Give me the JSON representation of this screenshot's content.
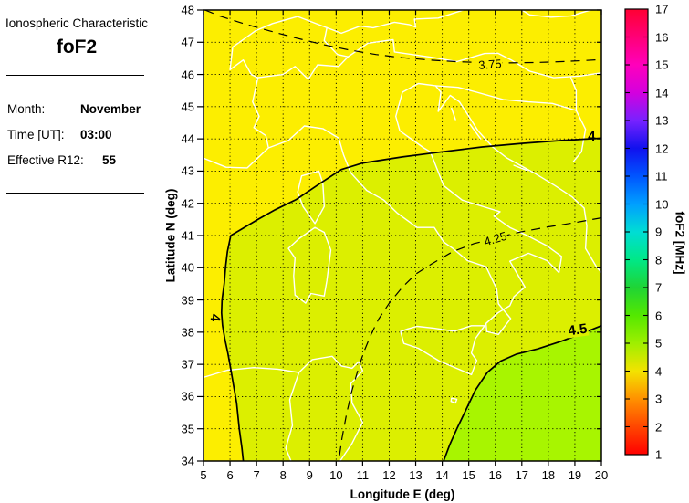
{
  "panel": {
    "title": "Ionospheric Characteristic",
    "characteristic": "foF2",
    "month_label": "Month:",
    "month_value": "November",
    "time_label": "Time [UT]:",
    "time_value": "03:00",
    "r12_label": "Effective R12:",
    "r12_value": "55"
  },
  "axes": {
    "xlabel": "Longitude E (deg)",
    "ylabel": "Latitude N (deg)"
  },
  "colorbar_title": "foF2 [MHz]",
  "chart_data": {
    "type": "heatmap",
    "subtype": "filled-contour-map",
    "title": "foF2 contour map over Europe",
    "xlabel": "Longitude E (deg)",
    "ylabel": "Latitude N (deg)",
    "xlim": [
      5,
      20
    ],
    "ylim": [
      34,
      48
    ],
    "xticks": [
      5,
      6,
      7,
      8,
      9,
      10,
      11,
      12,
      13,
      14,
      15,
      16,
      17,
      18,
      19,
      20
    ],
    "yticks": [
      34,
      35,
      36,
      37,
      38,
      39,
      40,
      41,
      42,
      43,
      44,
      45,
      46,
      47,
      48
    ],
    "grid": "dotted",
    "grid_color": "#000000",
    "coastline_color": "#ffffff",
    "contour_color": "#000000",
    "regions": {
      "below_4": "#FCEE00",
      "band_4_to_45": "#DCEF00",
      "above_45": "#A8F500"
    },
    "contours": [
      {
        "level": 3.75,
        "style": "dashed",
        "points": [
          [
            5.05,
            48
          ],
          [
            5.6,
            47.82
          ],
          [
            6.5,
            47.58
          ],
          [
            7.5,
            47.35
          ],
          [
            8.5,
            47.13
          ],
          [
            9.5,
            46.93
          ],
          [
            10.5,
            46.76
          ],
          [
            11.5,
            46.62
          ],
          [
            12.5,
            46.52
          ],
          [
            13.5,
            46.45
          ],
          [
            14.5,
            46.4
          ],
          [
            15.5,
            46.37
          ],
          [
            16.5,
            46.36
          ],
          [
            17.5,
            46.37
          ],
          [
            18.5,
            46.4
          ],
          [
            19.3,
            46.43
          ],
          [
            20,
            46.46
          ]
        ],
        "labels": [
          {
            "text": "3.75",
            "lon": 15.8,
            "lat": 46.3,
            "rot": -4,
            "bold": false,
            "bg": "#FCEE00"
          }
        ]
      },
      {
        "level": 4,
        "style": "solid",
        "points": [
          [
            20,
            44.02
          ],
          [
            18.5,
            43.95
          ],
          [
            17,
            43.86
          ],
          [
            15.5,
            43.75
          ],
          [
            14,
            43.6
          ],
          [
            12.5,
            43.44
          ],
          [
            11,
            43.25
          ],
          [
            10.2,
            43.05
          ],
          [
            9.4,
            42.62
          ],
          [
            8.5,
            42.12
          ],
          [
            7.7,
            41.8
          ],
          [
            7.05,
            41.5
          ],
          [
            6.4,
            41.18
          ],
          [
            6.03,
            41.0
          ],
          [
            5.9,
            40.5
          ],
          [
            5.83,
            40.0
          ],
          [
            5.78,
            39.5
          ],
          [
            5.7,
            39.0
          ],
          [
            5.68,
            38.6
          ],
          [
            5.72,
            38.2
          ],
          [
            5.8,
            37.8
          ],
          [
            5.92,
            37.35
          ],
          [
            6.02,
            36.9
          ],
          [
            6.12,
            36.4
          ],
          [
            6.25,
            35.8
          ],
          [
            6.35,
            35.0
          ],
          [
            6.45,
            34.4
          ],
          [
            6.5,
            34.0
          ]
        ],
        "labels": [
          {
            "text": "4",
            "lon": 19.63,
            "lat": 44.05,
            "rot": 0,
            "bold": true,
            "bg": ""
          },
          {
            "text": "4",
            "lon": 5.42,
            "lat": 38.45,
            "rot": 95,
            "bold": true,
            "bg": ""
          }
        ]
      },
      {
        "level": 4.25,
        "style": "dashed",
        "points": [
          [
            20,
            41.55
          ],
          [
            19,
            41.4
          ],
          [
            18,
            41.27
          ],
          [
            17,
            41.12
          ],
          [
            16.4,
            41.0
          ],
          [
            15.8,
            40.87
          ],
          [
            15.2,
            40.75
          ],
          [
            14.4,
            40.5
          ],
          [
            13.6,
            40.12
          ],
          [
            13.0,
            39.8
          ],
          [
            12.5,
            39.4
          ],
          [
            12.0,
            38.9
          ],
          [
            11.6,
            38.4
          ],
          [
            11.3,
            37.9
          ],
          [
            11.05,
            37.4
          ],
          [
            10.85,
            36.9
          ],
          [
            10.6,
            36.2
          ],
          [
            10.4,
            35.5
          ],
          [
            10.22,
            34.7
          ],
          [
            10.1,
            34.0
          ]
        ],
        "labels": [
          {
            "text": "4.25",
            "lon": 16.0,
            "lat": 40.88,
            "rot": -17,
            "bold": false,
            "bg": "#DCEF00"
          }
        ]
      },
      {
        "level": 4.5,
        "style": "solid",
        "points": [
          [
            20,
            38.2
          ],
          [
            19.3,
            37.97
          ],
          [
            18.5,
            37.72
          ],
          [
            17.6,
            37.48
          ],
          [
            16.8,
            37.32
          ],
          [
            16.2,
            37.1
          ],
          [
            15.7,
            36.75
          ],
          [
            15.25,
            36.2
          ],
          [
            14.9,
            35.6
          ],
          [
            14.55,
            35.0
          ],
          [
            14.28,
            34.5
          ],
          [
            14.05,
            34.0
          ]
        ],
        "labels": [
          {
            "text": "4.5",
            "lon": 19.1,
            "lat": 38.05,
            "rot": -8,
            "bold": true,
            "bg": "#DCEF00"
          }
        ]
      }
    ],
    "colorbar": {
      "label": "foF2 [MHz]",
      "min": 1,
      "max": 17,
      "ticks": [
        1,
        2,
        3,
        4,
        5,
        6,
        7,
        8,
        9,
        10,
        11,
        12,
        13,
        14,
        15,
        16,
        17
      ],
      "stops": [
        {
          "v": 1,
          "c": "#FF0000"
        },
        {
          "v": 2,
          "c": "#FF4600"
        },
        {
          "v": 3,
          "c": "#FF9100"
        },
        {
          "v": 4,
          "c": "#F3E300"
        },
        {
          "v": 5,
          "c": "#9FEF00"
        },
        {
          "v": 6,
          "c": "#54E800"
        },
        {
          "v": 7,
          "c": "#1FD435"
        },
        {
          "v": 8,
          "c": "#00E887"
        },
        {
          "v": 9,
          "c": "#00DDD4"
        },
        {
          "v": 10,
          "c": "#009FFF"
        },
        {
          "v": 11,
          "c": "#0055FF"
        },
        {
          "v": 12,
          "c": "#1111EE"
        },
        {
          "v": 13,
          "c": "#7722FF"
        },
        {
          "v": 14,
          "c": "#D400DE"
        },
        {
          "v": 15,
          "c": "#FF00BB"
        },
        {
          "v": 16,
          "c": "#FF0077"
        },
        {
          "v": 17,
          "c": "#FF0033"
        }
      ]
    },
    "coastlines": [
      [
        [
          5,
          43.4
        ],
        [
          5.85,
          43.12
        ],
        [
          6.65,
          43.1
        ],
        [
          7.45,
          43.72
        ],
        [
          8.2,
          43.95
        ],
        [
          8.8,
          44.4
        ],
        [
          9.5,
          44.32
        ],
        [
          10.1,
          44.02
        ],
        [
          10.28,
          43.5
        ],
        [
          10.55,
          42.95
        ],
        [
          11.15,
          42.4
        ],
        [
          11.8,
          42.1
        ],
        [
          12.3,
          41.7
        ],
        [
          13.05,
          41.25
        ],
        [
          13.7,
          41.25
        ],
        [
          14.05,
          40.8
        ],
        [
          14.4,
          40.6
        ],
        [
          14.95,
          40.22
        ],
        [
          15.65,
          40.03
        ],
        [
          16.05,
          39.35
        ],
        [
          16.12,
          38.88
        ],
        [
          16.58,
          38.42
        ],
        [
          16.12,
          37.93
        ],
        [
          15.68,
          38.02
        ],
        [
          15.65,
          38.27
        ],
        [
          16.1,
          38.6
        ],
        [
          16.55,
          38.82
        ],
        [
          16.7,
          39.1
        ],
        [
          17.12,
          39.4
        ],
        [
          16.8,
          39.85
        ],
        [
          16.55,
          40.2
        ],
        [
          17.25,
          40.45
        ],
        [
          17.95,
          40.22
        ],
        [
          18.4,
          39.85
        ],
        [
          18.5,
          40.35
        ],
        [
          17.95,
          40.68
        ],
        [
          17.2,
          41.0
        ],
        [
          16.55,
          41.25
        ],
        [
          15.95,
          41.6
        ],
        [
          16.18,
          41.74
        ],
        [
          15.45,
          41.92
        ],
        [
          14.75,
          42.1
        ],
        [
          14.05,
          42.55
        ],
        [
          13.55,
          43.6
        ],
        [
          13.3,
          43.72
        ],
        [
          12.4,
          44.25
        ],
        [
          12.25,
          44.7
        ],
        [
          12.5,
          45.45
        ],
        [
          13.1,
          45.72
        ],
        [
          13.75,
          45.65
        ],
        [
          13.95,
          45.45
        ],
        [
          13.85,
          44.85
        ],
        [
          14.3,
          45.35
        ],
        [
          14.65,
          45.15
        ],
        [
          15.0,
          44.7
        ],
        [
          15.35,
          44.25
        ],
        [
          15.9,
          43.75
        ],
        [
          16.45,
          43.4
        ],
        [
          17.45,
          42.95
        ],
        [
          18.25,
          42.55
        ],
        [
          18.9,
          42.2
        ],
        [
          19.35,
          41.85
        ],
        [
          19.45,
          41.3
        ],
        [
          19.4,
          40.6
        ],
        [
          19.82,
          40.02
        ],
        [
          20,
          39.85
        ]
      ],
      [
        [
          9.35,
          43.0
        ],
        [
          8.7,
          42.85
        ],
        [
          8.55,
          42.35
        ],
        [
          8.75,
          41.9
        ],
        [
          9.2,
          41.37
        ],
        [
          9.55,
          41.9
        ],
        [
          9.5,
          42.62
        ],
        [
          9.35,
          43.0
        ]
      ],
      [
        [
          9.2,
          41.25
        ],
        [
          8.6,
          40.9
        ],
        [
          8.2,
          40.6
        ],
        [
          8.45,
          40.3
        ],
        [
          8.4,
          39.75
        ],
        [
          8.45,
          39.15
        ],
        [
          8.85,
          38.9
        ],
        [
          9.05,
          39.2
        ],
        [
          9.55,
          39.12
        ],
        [
          9.65,
          39.6
        ],
        [
          9.8,
          40.55
        ],
        [
          9.55,
          41.1
        ],
        [
          9.2,
          41.25
        ]
      ],
      [
        [
          12.43,
          38.02
        ],
        [
          12.55,
          37.65
        ],
        [
          13.1,
          37.5
        ],
        [
          13.9,
          37.1
        ],
        [
          15.1,
          36.68
        ],
        [
          15.3,
          37.12
        ],
        [
          15.1,
          37.35
        ],
        [
          15.25,
          37.8
        ],
        [
          15.6,
          38.2
        ],
        [
          15.1,
          38.2
        ],
        [
          14.45,
          38.03
        ],
        [
          13.7,
          38.12
        ],
        [
          13.05,
          38.18
        ],
        [
          12.7,
          38.1
        ],
        [
          12.43,
          38.02
        ]
      ],
      [
        [
          14.35,
          35.95
        ],
        [
          14.55,
          35.92
        ],
        [
          14.5,
          35.8
        ],
        [
          14.33,
          35.85
        ],
        [
          14.35,
          35.95
        ]
      ],
      [
        [
          5,
          36.6
        ],
        [
          5.9,
          36.82
        ],
        [
          6.9,
          36.9
        ],
        [
          7.8,
          36.85
        ],
        [
          8.6,
          36.75
        ],
        [
          9.1,
          37.15
        ],
        [
          9.85,
          37.25
        ],
        [
          10.2,
          36.95
        ],
        [
          10.6,
          36.88
        ],
        [
          10.85,
          37.08
        ],
        [
          11.0,
          36.8
        ],
        [
          10.55,
          36.4
        ],
        [
          10.6,
          35.8
        ],
        [
          11.0,
          35.2
        ],
        [
          10.6,
          34.55
        ],
        [
          10.15,
          34.0
        ]
      ],
      [
        [
          8.6,
          36.75
        ],
        [
          8.25,
          35.9
        ],
        [
          8.35,
          35.1
        ],
        [
          8.1,
          34.4
        ],
        [
          8.3,
          34.0
        ]
      ],
      [
        [
          6.0,
          46.15
        ],
        [
          6.5,
          46.45
        ],
        [
          6.8,
          46.0
        ],
        [
          7.05,
          45.9
        ],
        [
          8.0,
          46.0
        ],
        [
          8.45,
          46.25
        ],
        [
          8.95,
          45.85
        ],
        [
          9.3,
          46.3
        ],
        [
          10.1,
          46.25
        ],
        [
          10.45,
          46.55
        ],
        [
          10.05,
          46.62
        ],
        [
          9.55,
          47.05
        ],
        [
          9.65,
          47.45
        ],
        [
          8.55,
          47.8
        ],
        [
          7.6,
          47.58
        ],
        [
          6.95,
          47.35
        ],
        [
          6.1,
          46.85
        ],
        [
          6.0,
          46.15
        ]
      ],
      [
        [
          7.05,
          45.9
        ],
        [
          6.85,
          45.15
        ],
        [
          7.1,
          44.7
        ],
        [
          6.9,
          44.35
        ],
        [
          7.35,
          44.1
        ],
        [
          7.45,
          43.72
        ]
      ],
      [
        [
          10.45,
          46.55
        ],
        [
          11.2,
          46.97
        ],
        [
          12.15,
          47.08
        ],
        [
          12.2,
          46.7
        ],
        [
          13.7,
          46.52
        ],
        [
          14.55,
          46.4
        ],
        [
          15.6,
          46.65
        ],
        [
          16.1,
          46.66
        ],
        [
          16.6,
          46.45
        ],
        [
          17.3,
          46.1
        ],
        [
          18.2,
          45.9
        ],
        [
          19.2,
          45.95
        ],
        [
          20,
          46.05
        ]
      ],
      [
        [
          9.65,
          47.45
        ],
        [
          10.2,
          47.28
        ],
        [
          10.9,
          47.5
        ],
        [
          11.4,
          47.45
        ],
        [
          12.2,
          47.62
        ],
        [
          12.75,
          47.55
        ],
        [
          13.0,
          47.47
        ],
        [
          12.95,
          47.72
        ],
        [
          13.85,
          47.75
        ],
        [
          14.8,
          48.0
        ]
      ],
      [
        [
          13.75,
          45.65
        ],
        [
          14.6,
          45.6
        ],
        [
          15.3,
          45.45
        ],
        [
          16.3,
          45.22
        ],
        [
          17.25,
          45.15
        ],
        [
          18.15,
          45.1
        ],
        [
          19.05,
          44.88
        ]
      ],
      [
        [
          19.05,
          44.88
        ],
        [
          19.4,
          44.3
        ],
        [
          19.25,
          43.6
        ],
        [
          18.95,
          43.3
        ]
      ],
      [
        [
          18.85,
          45.9
        ],
        [
          19.05,
          45.5
        ],
        [
          19.05,
          44.88
        ]
      ],
      [
        [
          14.35,
          44.95
        ],
        [
          14.5,
          44.6
        ]
      ],
      [
        [
          15.05,
          44.45
        ],
        [
          15.45,
          44.0
        ]
      ],
      [
        [
          16.7,
          43.18
        ],
        [
          17.2,
          43.02
        ]
      ],
      [
        [
          17.0,
          48.0
        ],
        [
          17.3,
          47.85
        ],
        [
          18.1,
          47.78
        ],
        [
          18.85,
          47.82
        ],
        [
          19.6,
          48.0
        ]
      ]
    ]
  }
}
